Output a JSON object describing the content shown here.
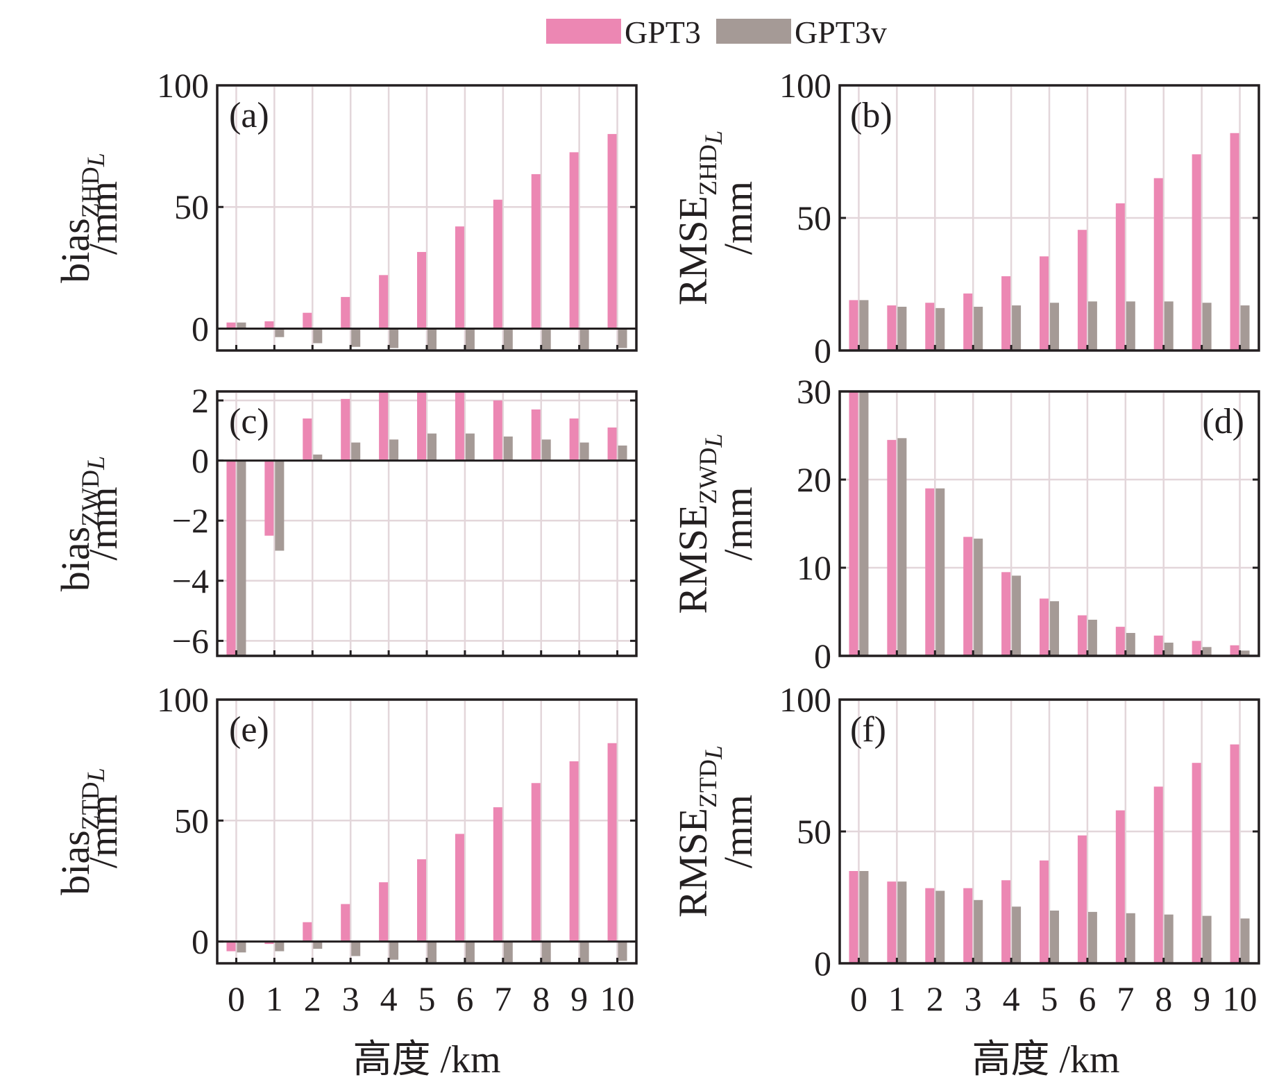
{
  "legend": [
    {
      "name": "GPT3",
      "color": "#ec87b3"
    },
    {
      "name": "GPT3v",
      "color": "#a59a96"
    }
  ],
  "x_axis_label": "高度 /km",
  "chart_data": [
    {
      "type": "bar",
      "panel": "(a)",
      "ylabel_main": "bias",
      "ylabel_sub": "ZHD",
      "ylabel_subscript_suffix": "L",
      "ylabel_unit": "/mm",
      "categories": [
        "0",
        "1",
        "2",
        "3",
        "4",
        "5",
        "6",
        "7",
        "8",
        "9",
        "10"
      ],
      "ylim": [
        -9,
        100
      ],
      "yticks": [
        0,
        50,
        100
      ],
      "zero_line": true,
      "grid": true,
      "series": [
        {
          "name": "GPT3",
          "values": [
            2.5,
            3,
            6.5,
            13,
            22,
            31.5,
            42,
            53,
            63.5,
            72.5,
            80
          ]
        },
        {
          "name": "GPT3v",
          "values": [
            2.5,
            -3.5,
            -6,
            -7.5,
            -8,
            -8.5,
            -8.5,
            -8.5,
            -8.5,
            -8.5,
            -8
          ]
        }
      ]
    },
    {
      "type": "bar",
      "panel": "(b)",
      "ylabel_main": "RMSE",
      "ylabel_sub": "ZHD",
      "ylabel_subscript_suffix": "L",
      "ylabel_unit": "/mm",
      "categories": [
        "0",
        "1",
        "2",
        "3",
        "4",
        "5",
        "6",
        "7",
        "8",
        "9",
        "10"
      ],
      "ylim": [
        0,
        100
      ],
      "yticks": [
        0,
        50,
        100
      ],
      "zero_line": false,
      "grid": true,
      "series": [
        {
          "name": "GPT3",
          "values": [
            19,
            17,
            18,
            21.5,
            28,
            35.5,
            45.5,
            55.5,
            65,
            74,
            82
          ]
        },
        {
          "name": "GPT3v",
          "values": [
            19,
            16.5,
            16,
            16.5,
            17,
            18,
            18.5,
            18.5,
            18.5,
            18,
            17
          ]
        }
      ]
    },
    {
      "type": "bar",
      "panel": "(c)",
      "ylabel_main": "bias",
      "ylabel_sub": "ZWD",
      "ylabel_subscript_suffix": "L",
      "ylabel_unit": "/mm",
      "categories": [
        "0",
        "1",
        "2",
        "3",
        "4",
        "5",
        "6",
        "7",
        "8",
        "9",
        "10"
      ],
      "ylim": [
        -6.5,
        2.3
      ],
      "yticks": [
        2,
        0,
        -2,
        -4,
        -6
      ],
      "zero_line": true,
      "grid": true,
      "series": [
        {
          "name": "GPT3",
          "values": [
            -6.5,
            -2.5,
            1.4,
            2.05,
            2.3,
            2.3,
            2.3,
            2.0,
            1.7,
            1.4,
            1.1
          ]
        },
        {
          "name": "GPT3v",
          "values": [
            -6.5,
            -3.0,
            0.2,
            0.6,
            0.7,
            0.9,
            0.9,
            0.8,
            0.7,
            0.6,
            0.5
          ]
        }
      ]
    },
    {
      "type": "bar",
      "panel": "(d)",
      "ylabel_main": "RMSE",
      "ylabel_sub": "ZWD",
      "ylabel_subscript_suffix": "L",
      "ylabel_unit": "/mm",
      "categories": [
        "0",
        "1",
        "2",
        "3",
        "4",
        "5",
        "6",
        "7",
        "8",
        "9",
        "10"
      ],
      "ylim": [
        0,
        30
      ],
      "yticks": [
        0,
        10,
        20,
        30
      ],
      "zero_line": false,
      "grid": true,
      "series": [
        {
          "name": "GPT3",
          "values": [
            30,
            24.5,
            19,
            13.5,
            9.5,
            6.5,
            4.6,
            3.3,
            2.3,
            1.7,
            1.2
          ]
        },
        {
          "name": "GPT3v",
          "values": [
            30,
            24.7,
            19,
            13.3,
            9.1,
            6.2,
            4.1,
            2.6,
            1.5,
            1.0,
            0.6
          ]
        }
      ]
    },
    {
      "type": "bar",
      "panel": "(e)",
      "ylabel_main": "bias",
      "ylabel_sub": "ZTD",
      "ylabel_subscript_suffix": "L",
      "ylabel_unit": "/mm",
      "categories": [
        "0",
        "1",
        "2",
        "3",
        "4",
        "5",
        "6",
        "7",
        "8",
        "9",
        "10"
      ],
      "ylim": [
        -9,
        100
      ],
      "yticks": [
        0,
        50,
        100
      ],
      "zero_line": true,
      "grid": true,
      "series": [
        {
          "name": "GPT3",
          "values": [
            -4,
            -1,
            8,
            15.5,
            24.5,
            34,
            44.5,
            55.5,
            65.5,
            74.5,
            82
          ]
        },
        {
          "name": "GPT3v",
          "values": [
            -4.5,
            -4,
            -3,
            -6,
            -7.5,
            -8.5,
            -8.5,
            -8.5,
            -8.5,
            -8.5,
            -8
          ]
        }
      ]
    },
    {
      "type": "bar",
      "panel": "(f)",
      "ylabel_main": "RMSE",
      "ylabel_sub": "ZTD",
      "ylabel_subscript_suffix": "L",
      "ylabel_unit": "/mm",
      "categories": [
        "0",
        "1",
        "2",
        "3",
        "4",
        "5",
        "6",
        "7",
        "8",
        "9",
        "10"
      ],
      "ylim": [
        0,
        100
      ],
      "yticks": [
        0,
        50,
        100
      ],
      "zero_line": false,
      "grid": true,
      "series": [
        {
          "name": "GPT3",
          "values": [
            35,
            31,
            28.5,
            28.5,
            31.5,
            39,
            48.5,
            58,
            67,
            76,
            83
          ]
        },
        {
          "name": "GPT3v",
          "values": [
            35,
            31,
            27.5,
            24,
            21.5,
            20,
            19.5,
            19,
            18.5,
            18,
            17
          ]
        }
      ]
    }
  ]
}
